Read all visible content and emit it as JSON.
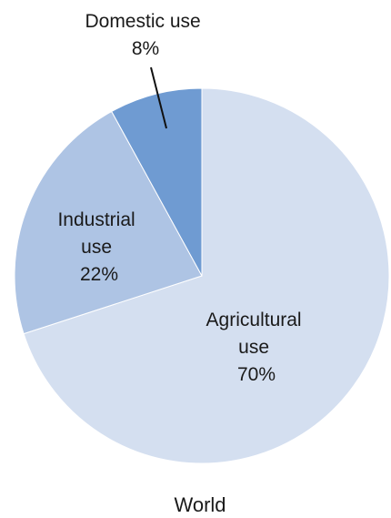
{
  "chart_data": {
    "type": "pie",
    "caption": "World",
    "slices": [
      {
        "name": "Agricultural use",
        "label_lines": [
          "Agricultural",
          "use",
          "70%"
        ],
        "value": 70,
        "color": "#d4dff0"
      },
      {
        "name": "Industrial use",
        "label_lines": [
          "Industrial",
          "use",
          "22%"
        ],
        "value": 22,
        "color": "#aec4e4"
      },
      {
        "name": "Domestic use",
        "label_lines": [
          "Domestic use",
          "8%"
        ],
        "value": 8,
        "color": "#6f9bd2"
      }
    ]
  }
}
